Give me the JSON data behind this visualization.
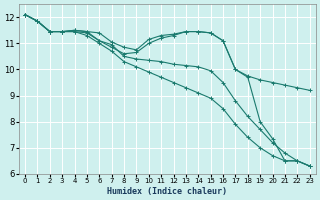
{
  "title": "",
  "xlabel": "Humidex (Indice chaleur)",
  "ylabel": "",
  "bg_color": "#cff0ee",
  "line_color": "#1a7a6e",
  "grid_color": "#ffffff",
  "xlim": [
    -0.5,
    23.5
  ],
  "ylim": [
    6,
    12.5
  ],
  "yticks": [
    6,
    7,
    8,
    9,
    10,
    11,
    12
  ],
  "xticks": [
    0,
    1,
    2,
    3,
    4,
    5,
    6,
    7,
    8,
    9,
    10,
    11,
    12,
    13,
    14,
    15,
    16,
    17,
    18,
    19,
    20,
    21,
    22,
    23
  ],
  "series": [
    {
      "x": [
        0,
        1,
        2,
        3,
        4,
        5,
        6,
        7,
        8,
        9,
        10,
        11,
        12,
        13,
        14,
        15,
        16,
        17,
        18,
        19,
        20,
        21,
        22,
        23
      ],
      "y": [
        12.1,
        11.85,
        11.45,
        11.45,
        11.5,
        11.45,
        11.4,
        11.05,
        10.85,
        10.75,
        11.15,
        11.3,
        11.35,
        11.45,
        11.45,
        11.4,
        11.1,
        10.0,
        9.75,
        9.6,
        9.5,
        9.4,
        9.3,
        9.2
      ],
      "marker": "+"
    },
    {
      "x": [
        0,
        1,
        2,
        3,
        4,
        5,
        6,
        7,
        8,
        9,
        10,
        11,
        12,
        13,
        14,
        15,
        16,
        17,
        18,
        19,
        20,
        21,
        22,
        23
      ],
      "y": [
        12.1,
        11.85,
        11.45,
        11.45,
        11.5,
        11.45,
        11.1,
        10.85,
        10.6,
        10.65,
        11.0,
        11.2,
        11.3,
        11.45,
        11.45,
        11.4,
        11.1,
        10.0,
        9.7,
        8.0,
        7.35,
        6.5,
        6.5,
        6.3
      ],
      "marker": "+"
    },
    {
      "x": [
        0,
        1,
        2,
        3,
        4,
        5,
        6,
        7,
        8,
        9,
        10,
        11,
        12,
        13,
        14,
        15,
        16,
        17,
        18,
        19,
        20,
        21,
        22,
        23
      ],
      "y": [
        12.1,
        11.85,
        11.45,
        11.45,
        11.45,
        11.4,
        11.1,
        10.95,
        10.5,
        10.4,
        10.35,
        10.3,
        10.2,
        10.15,
        10.1,
        9.95,
        9.5,
        8.8,
        8.2,
        7.7,
        7.2,
        6.8,
        6.5,
        6.3
      ],
      "marker": "+"
    },
    {
      "x": [
        0,
        1,
        2,
        3,
        4,
        5,
        6,
        7,
        8,
        9,
        10,
        11,
        12,
        13,
        14,
        15,
        16,
        17,
        18,
        19,
        20,
        21,
        22,
        23
      ],
      "y": [
        12.1,
        11.85,
        11.45,
        11.45,
        11.45,
        11.3,
        11.0,
        10.7,
        10.3,
        10.1,
        9.9,
        9.7,
        9.5,
        9.3,
        9.1,
        8.9,
        8.5,
        7.9,
        7.4,
        7.0,
        6.7,
        6.5,
        6.5,
        6.3
      ],
      "marker": "+"
    }
  ]
}
